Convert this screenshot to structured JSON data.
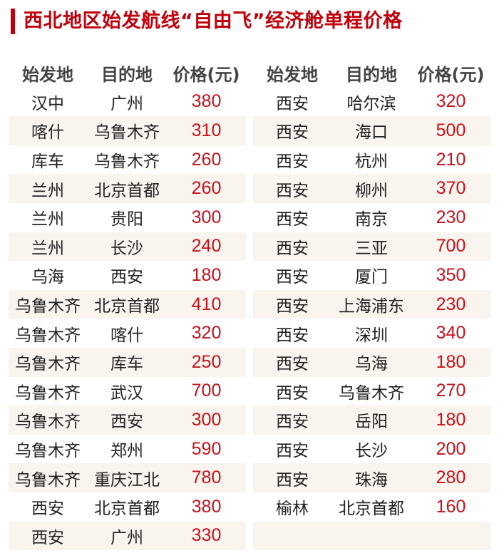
{
  "title": "西北地区始发航线“自由飞”经济舱单程价格",
  "headers": [
    "始发地",
    "目的地",
    "价格(元)"
  ],
  "colors": {
    "accent": "#c0000b",
    "stripe": "#f9f4ee"
  },
  "left_table": [
    {
      "from": "汉中",
      "to": "广州",
      "price": "380"
    },
    {
      "from": "喀什",
      "to": "乌鲁木齐",
      "price": "310"
    },
    {
      "from": "库车",
      "to": "乌鲁木齐",
      "price": "260"
    },
    {
      "from": "兰州",
      "to": "北京首都",
      "price": "260"
    },
    {
      "from": "兰州",
      "to": "贵阳",
      "price": "300"
    },
    {
      "from": "兰州",
      "to": "长沙",
      "price": "240"
    },
    {
      "from": "乌海",
      "to": "西安",
      "price": "180"
    },
    {
      "from": "乌鲁木齐",
      "to": "北京首都",
      "price": "410"
    },
    {
      "from": "乌鲁木齐",
      "to": "喀什",
      "price": "320"
    },
    {
      "from": "乌鲁木齐",
      "to": "库车",
      "price": "250"
    },
    {
      "from": "乌鲁木齐",
      "to": "武汉",
      "price": "700"
    },
    {
      "from": "乌鲁木齐",
      "to": "西安",
      "price": "300"
    },
    {
      "from": "乌鲁木齐",
      "to": "郑州",
      "price": "590"
    },
    {
      "from": "乌鲁木齐",
      "to": "重庆江北",
      "price": "780"
    },
    {
      "from": "西安",
      "to": "北京首都",
      "price": "380"
    },
    {
      "from": "西安",
      "to": "广州",
      "price": "330"
    }
  ],
  "right_table": [
    {
      "from": "西安",
      "to": "哈尔滨",
      "price": "320"
    },
    {
      "from": "西安",
      "to": "海口",
      "price": "500"
    },
    {
      "from": "西安",
      "to": "杭州",
      "price": "210"
    },
    {
      "from": "西安",
      "to": "柳州",
      "price": "370"
    },
    {
      "from": "西安",
      "to": "南京",
      "price": "230"
    },
    {
      "from": "西安",
      "to": "三亚",
      "price": "700"
    },
    {
      "from": "西安",
      "to": "厦门",
      "price": "350"
    },
    {
      "from": "西安",
      "to": "上海浦东",
      "price": "230"
    },
    {
      "from": "西安",
      "to": "深圳",
      "price": "340"
    },
    {
      "from": "西安",
      "to": "乌海",
      "price": "180"
    },
    {
      "from": "西安",
      "to": "乌鲁木齐",
      "price": "270"
    },
    {
      "from": "西安",
      "to": "岳阳",
      "price": "180"
    },
    {
      "from": "西安",
      "to": "长沙",
      "price": "200"
    },
    {
      "from": "西安",
      "to": "珠海",
      "price": "280"
    },
    {
      "from": "榆林",
      "to": "北京首都",
      "price": "160"
    },
    {
      "from": "",
      "to": "",
      "price": ""
    }
  ]
}
